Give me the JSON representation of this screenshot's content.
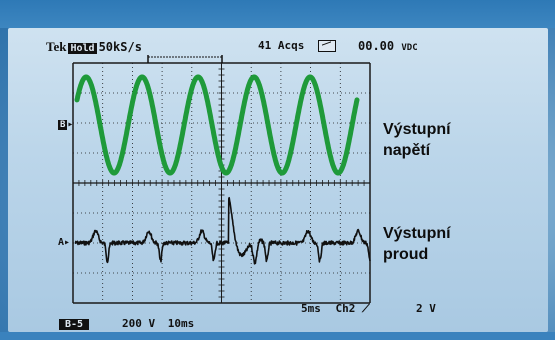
{
  "header": {
    "brand": "Tek",
    "hold": "Hold",
    "sample_rate": "50kS/s",
    "acquisitions": "41 Acqs",
    "readout": "00.00",
    "readout_unit": "VDC"
  },
  "channels": {
    "b_marker": "B",
    "a_marker": "A"
  },
  "labels": {
    "output_voltage_line1": "Výstupní",
    "output_voltage_line2": "napětí",
    "output_current_line1": "Výstupní",
    "output_current_line2": "proud"
  },
  "footer": {
    "mode": "B-5",
    "volts_div": "200 V",
    "time_div": "10ms",
    "timebase": "5ms",
    "trigger_channel": "Ch2",
    "trigger_level": "2 V"
  },
  "colors": {
    "trace_b": "#1f9a3a",
    "trace_a": "#111111",
    "grid": "#1a1a1a"
  },
  "traces": {
    "voltage_cycles": 5,
    "current_description_icon": "current-spikes"
  }
}
